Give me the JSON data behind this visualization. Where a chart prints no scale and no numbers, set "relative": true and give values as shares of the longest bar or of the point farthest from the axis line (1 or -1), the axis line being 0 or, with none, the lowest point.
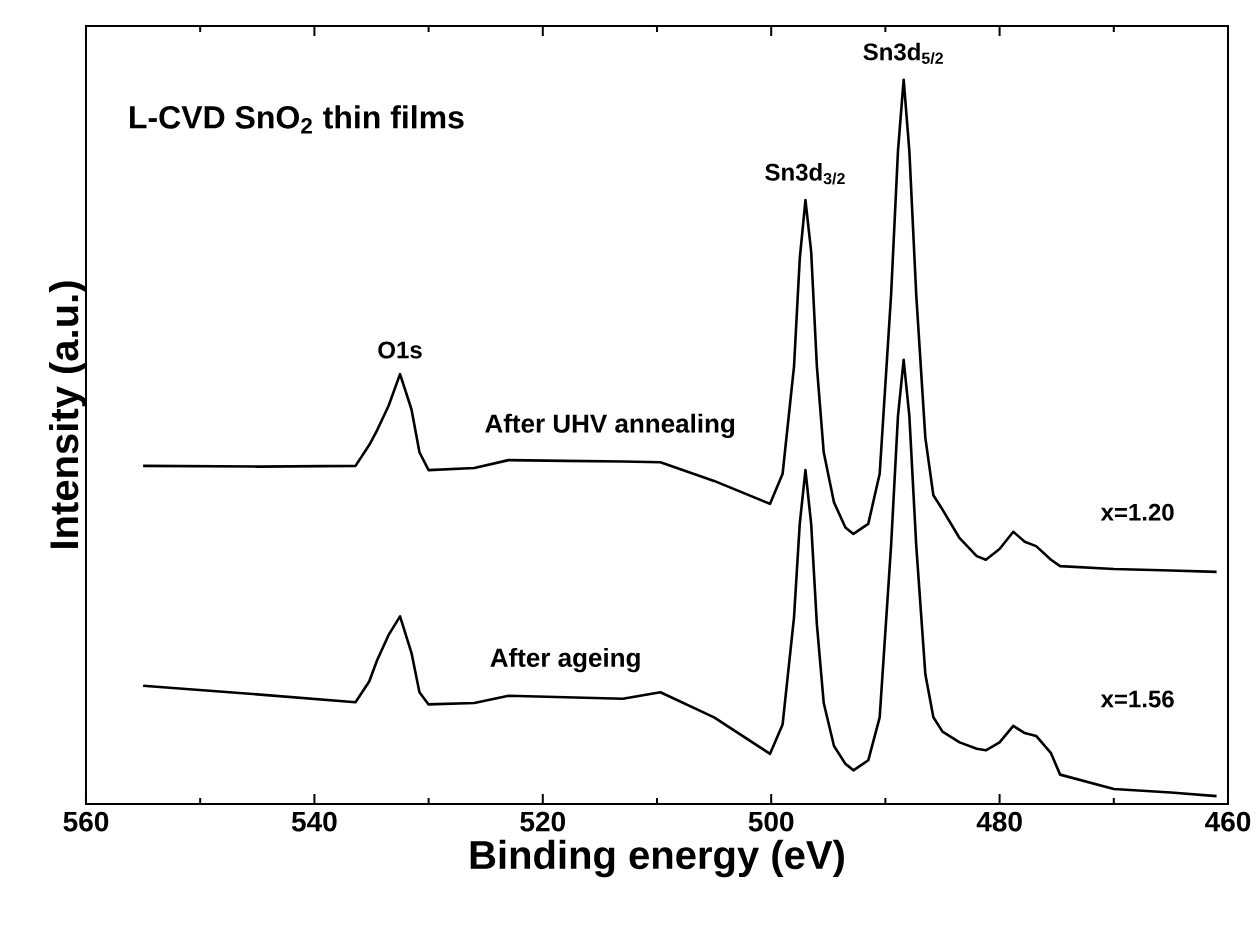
{
  "chart_data": {
    "type": "line",
    "title": "L-CVD SnO$_{2}$ thin films",
    "xlabel": "Binding energy (eV)",
    "ylabel": "Intensity (a.u.)",
    "relative": true,
    "xlim": [
      560,
      460
    ],
    "xticks": [
      560,
      540,
      520,
      500,
      480,
      460
    ],
    "annotations": [
      {
        "text": "O1s",
        "x": 532.5,
        "y": 0.589
      },
      {
        "text": "Sn3d$_{3/2}$",
        "x": 497,
        "y": 0.832
      },
      {
        "text": "Sn3d$_{5/2}$",
        "x": 488.4,
        "y": 1.0
      },
      "x=1.20",
      "x=1.56"
    ],
    "series": [
      {
        "name": "After UHV annealing",
        "color": "#000000",
        "x": [
          555,
          545,
          536.4,
          535.2,
          534.5,
          533.5,
          532.5,
          531.5,
          530.8,
          530,
          526,
          523,
          518,
          513,
          509.7,
          505,
          500.1,
          499,
          498,
          497.5,
          497,
          496.5,
          496,
          495.4,
          494.5,
          493.5,
          492.8,
          491.5,
          490.5,
          489.5,
          488.9,
          488.4,
          487.9,
          487.3,
          486.5,
          485.8,
          485,
          483.5,
          482,
          481.2,
          480,
          478.8,
          477.8,
          476.8,
          475.5,
          474.7,
          470,
          465,
          461
        ],
        "values": [
          0.461,
          0.46,
          0.461,
          0.49,
          0.511,
          0.545,
          0.589,
          0.54,
          0.48,
          0.455,
          0.458,
          0.469,
          0.468,
          0.467,
          0.466,
          0.44,
          0.408,
          0.45,
          0.6,
          0.75,
          0.832,
          0.76,
          0.6,
          0.48,
          0.41,
          0.375,
          0.366,
          0.38,
          0.45,
          0.7,
          0.9,
          1.0,
          0.9,
          0.7,
          0.5,
          0.42,
          0.4,
          0.36,
          0.335,
          0.33,
          0.345,
          0.369,
          0.355,
          0.349,
          0.33,
          0.321,
          0.317,
          0.315,
          0.313
        ]
      },
      {
        "name": "After ageing",
        "color": "#000000",
        "x": [
          555,
          545,
          536.4,
          535.2,
          534.5,
          533.5,
          532.5,
          531.5,
          530.8,
          530,
          526,
          523,
          518,
          513,
          509.7,
          505,
          500.1,
          499,
          498,
          497.5,
          497,
          496.5,
          496,
          495.4,
          494.5,
          493.5,
          492.8,
          491.5,
          490.5,
          489.5,
          488.9,
          488.4,
          487.9,
          487.3,
          486.5,
          485.8,
          485,
          483.5,
          482,
          481.2,
          480,
          478.8,
          477.8,
          476.8,
          475.5,
          474.7,
          470,
          465,
          461
        ],
        "values": [
          0.154,
          0.142,
          0.131,
          0.16,
          0.19,
          0.225,
          0.251,
          0.2,
          0.145,
          0.128,
          0.13,
          0.14,
          0.138,
          0.136,
          0.145,
          0.11,
          0.059,
          0.1,
          0.25,
          0.38,
          0.455,
          0.38,
          0.24,
          0.13,
          0.07,
          0.045,
          0.036,
          0.05,
          0.11,
          0.35,
          0.53,
          0.609,
          0.53,
          0.35,
          0.17,
          0.11,
          0.09,
          0.075,
          0.066,
          0.064,
          0.075,
          0.098,
          0.088,
          0.084,
          0.06,
          0.03,
          0.01,
          0.005,
          0.0
        ]
      }
    ]
  }
}
